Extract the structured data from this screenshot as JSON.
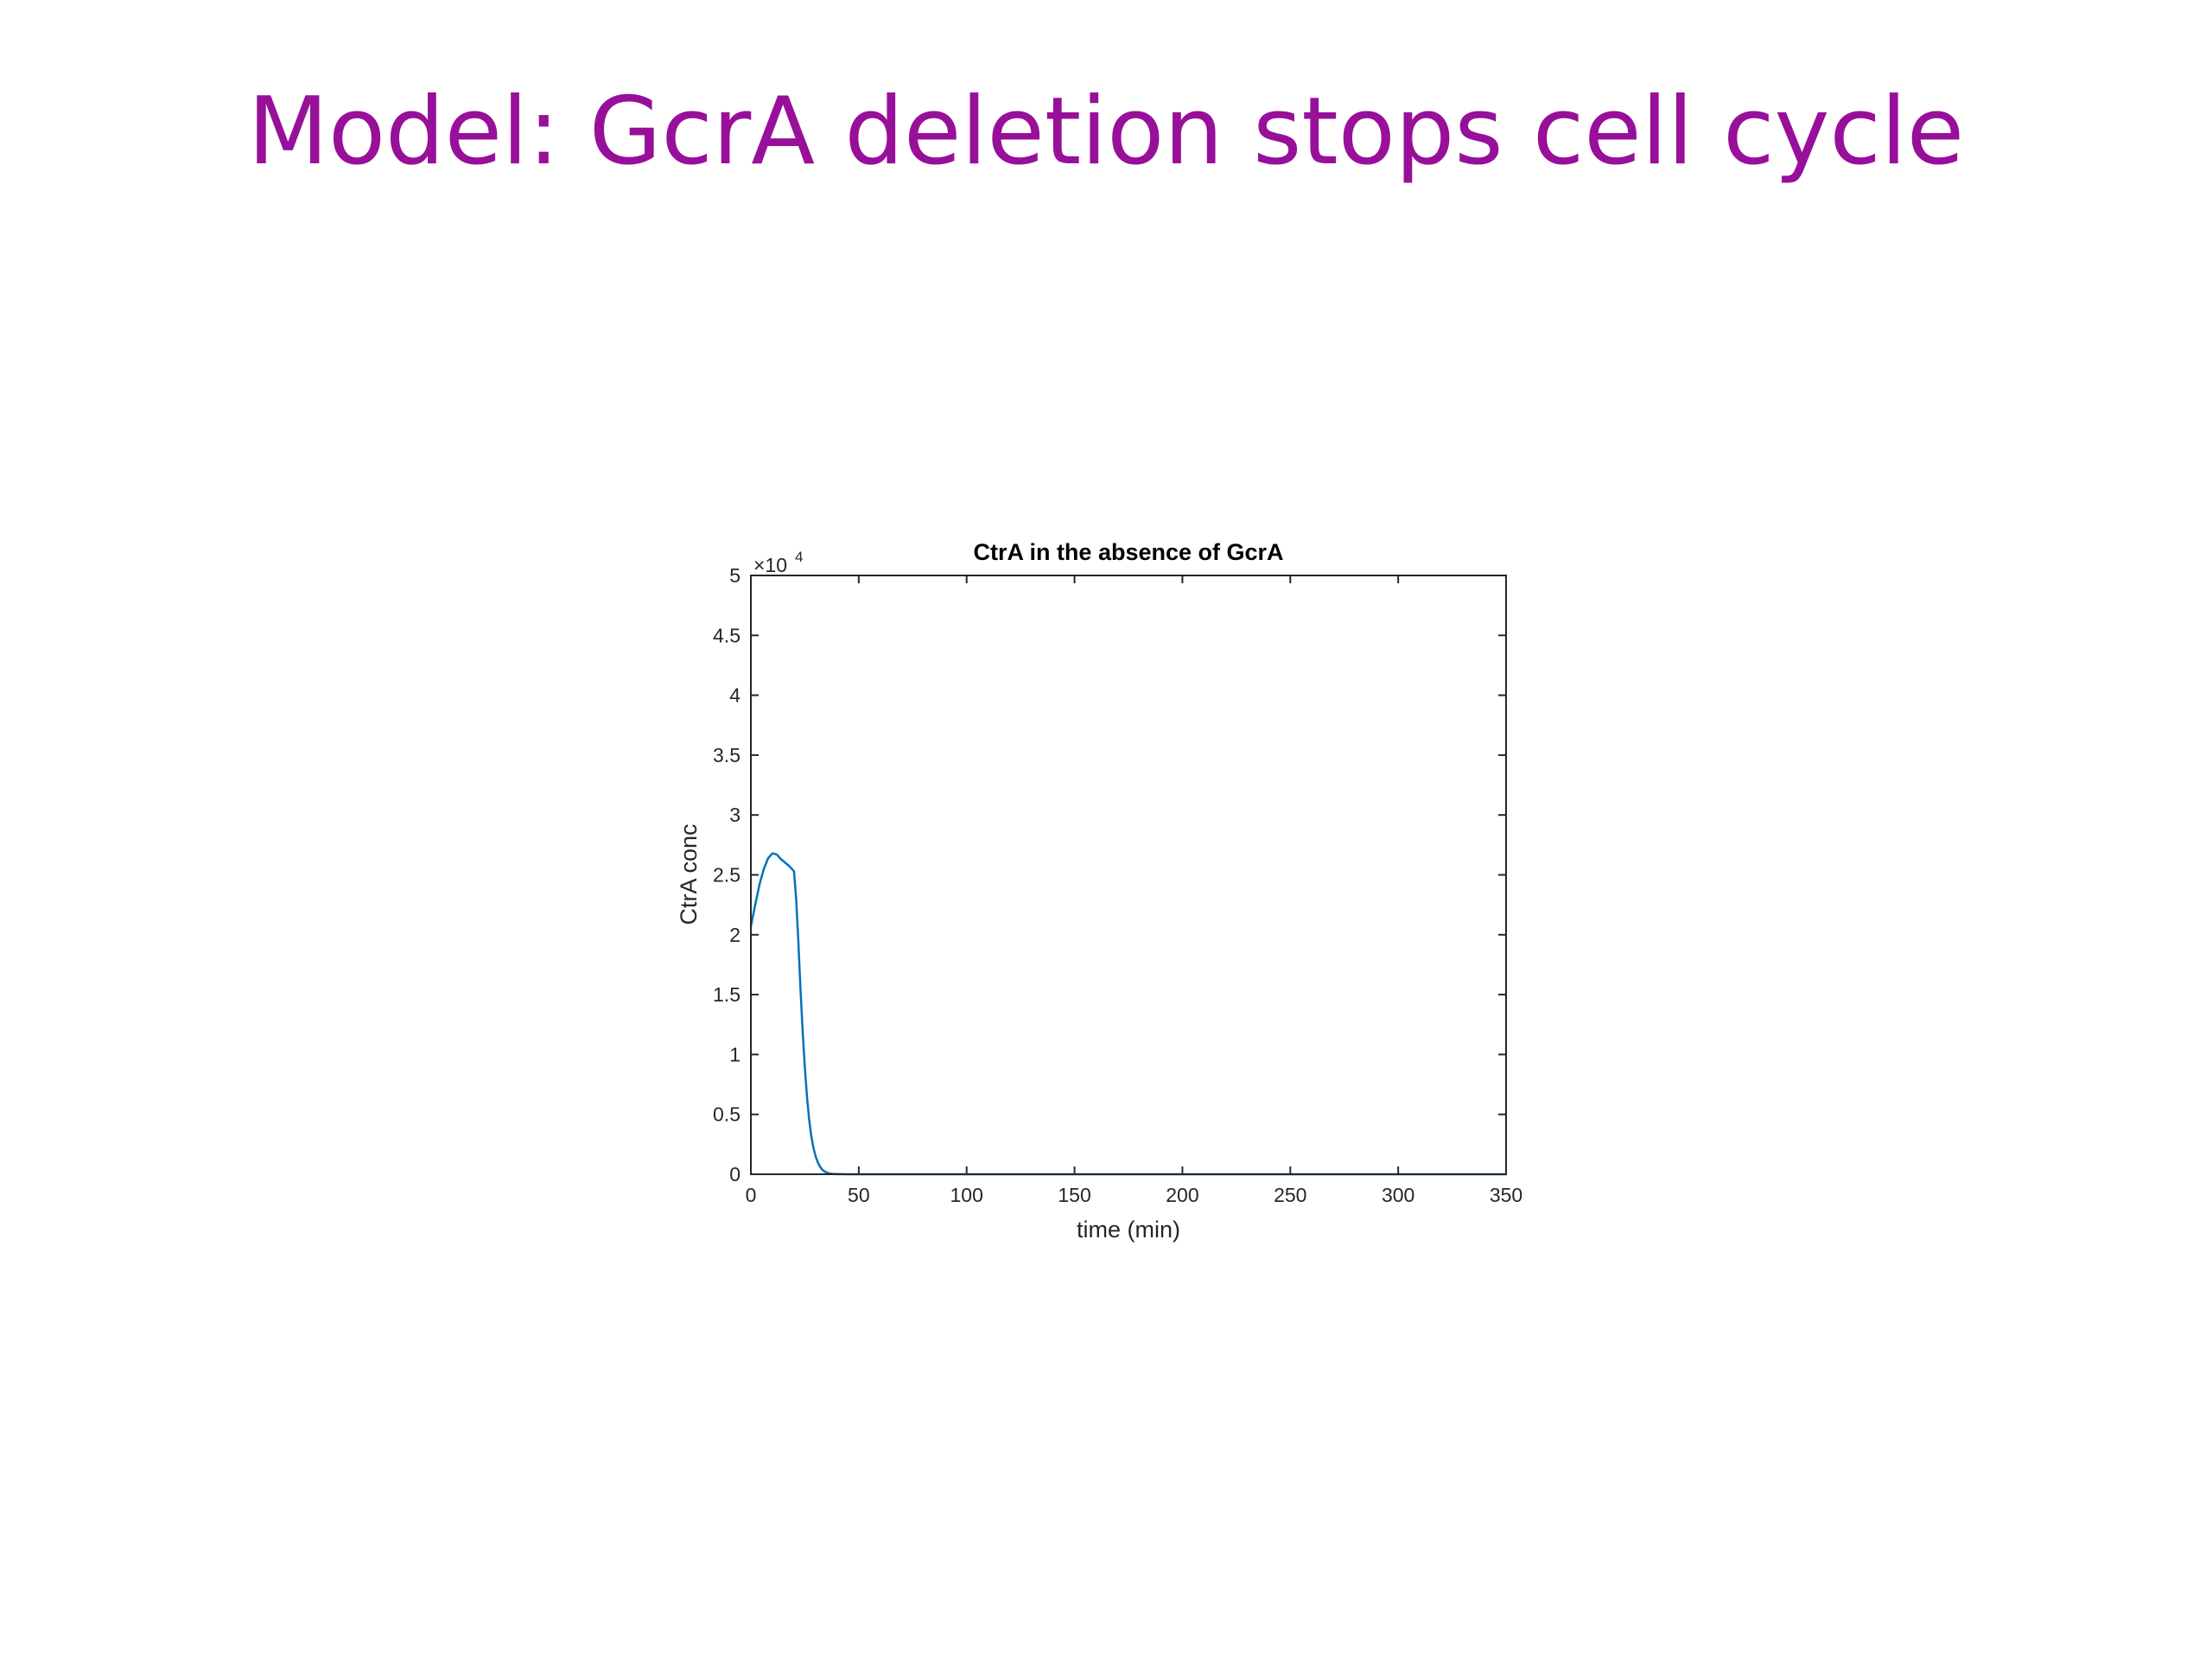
{
  "slide": {
    "title": "Model: GcrA deletion stops cell cycle"
  },
  "chart_data": {
    "type": "line",
    "title": "CtrA in the absence of GcrA",
    "xlabel": "time (min)",
    "ylabel": "CtrA conc",
    "y_exponent_label": "×10",
    "y_exponent_power": "4",
    "xlim": [
      0,
      350
    ],
    "ylim": [
      0,
      5
    ],
    "xticks": [
      0,
      50,
      100,
      150,
      200,
      250,
      300,
      350
    ],
    "xtick_labels": [
      "0",
      "50",
      "100",
      "150",
      "200",
      "250",
      "300",
      "350"
    ],
    "yticks": [
      0,
      0.5,
      1,
      1.5,
      2,
      2.5,
      3,
      3.5,
      4,
      4.5,
      5
    ],
    "ytick_labels": [
      "0",
      "0.5",
      "1",
      "1.5",
      "2",
      "2.5",
      "3",
      "3.5",
      "4",
      "4.5",
      "5"
    ],
    "grid": false,
    "series": [
      {
        "color": "#0072BD",
        "x": [
          0,
          2,
          4,
          6,
          8,
          10,
          12,
          14,
          16,
          18,
          20,
          21,
          22,
          23,
          24,
          25,
          26,
          27,
          28,
          29,
          30,
          31,
          32,
          33,
          34,
          35,
          36,
          37,
          38,
          40,
          42,
          45,
          50,
          60,
          80,
          120,
          200,
          300,
          350
        ],
        "y": [
          2.07,
          2.25,
          2.42,
          2.55,
          2.64,
          2.68,
          2.67,
          2.63,
          2.6,
          2.57,
          2.53,
          2.3,
          1.95,
          1.55,
          1.2,
          0.9,
          0.65,
          0.46,
          0.32,
          0.22,
          0.15,
          0.1,
          0.065,
          0.04,
          0.025,
          0.015,
          0.009,
          0.005,
          0.003,
          0.001,
          0.0005,
          0,
          0,
          0,
          0,
          0,
          0,
          0,
          0
        ]
      }
    ]
  }
}
